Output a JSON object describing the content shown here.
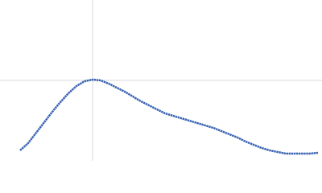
{
  "chart_data": {
    "type": "line",
    "x": [
      25,
      35,
      45,
      55,
      65,
      75,
      85,
      95,
      105,
      115,
      125,
      135,
      145,
      155,
      165,
      175,
      185,
      195,
      205,
      215,
      225,
      235,
      245,
      255,
      265,
      275,
      285,
      295,
      305,
      315,
      325,
      335,
      345,
      355,
      365,
      375,
      385,
      395
    ],
    "series": [
      {
        "color": "#3a63b3",
        "values": [
          13,
          22,
          35,
          48,
          61,
          73,
          84,
          93,
          99,
          101,
          100,
          96,
          91,
          86,
          80,
          74,
          69,
          64,
          59,
          56,
          53,
          50,
          47,
          44,
          41,
          37,
          33,
          29,
          24,
          20,
          16,
          13,
          11,
          9,
          9,
          9,
          9,
          10
        ]
      }
    ],
    "xlim": [
      0,
      400
    ],
    "ylim": [
      0,
      200
    ],
    "xticks": [
      115
    ],
    "yticks": [
      100
    ],
    "grid": true
  }
}
